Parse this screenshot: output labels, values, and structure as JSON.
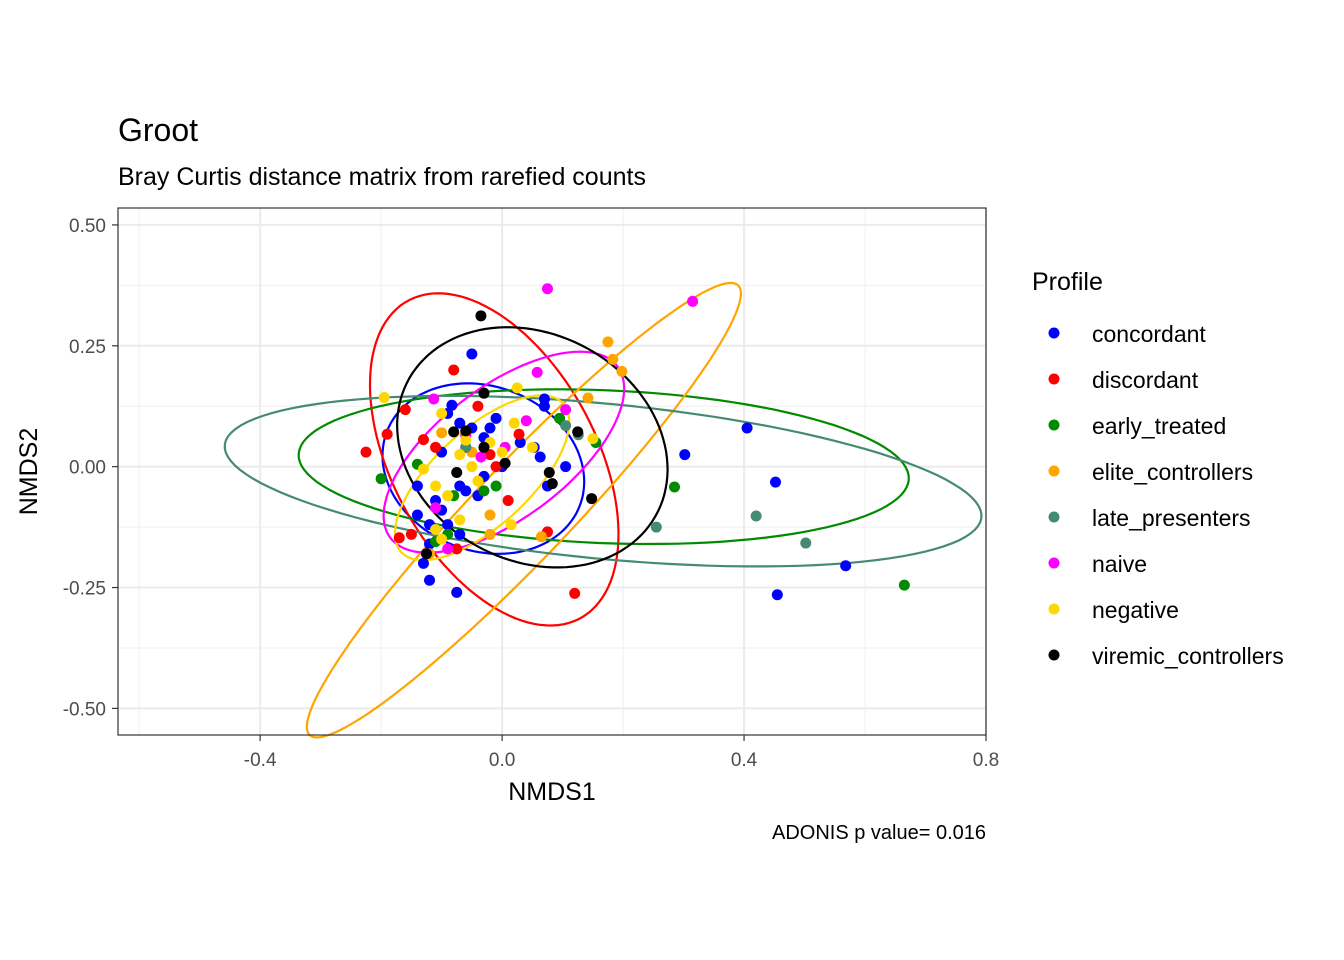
{
  "chart_data": {
    "type": "scatter",
    "title": "Groot",
    "subtitle": "Bray Curtis distance matrix from rarefied counts",
    "xlabel": "NMDS1",
    "ylabel": "NMDS2",
    "xlim": [
      -0.635,
      0.8
    ],
    "ylim": [
      -0.555,
      0.535
    ],
    "x_ticks": [
      -0.4,
      0.0,
      0.4,
      0.8
    ],
    "x_tick_labels": [
      "-0.4",
      "0.0",
      "0.4",
      "0.8"
    ],
    "y_ticks": [
      -0.5,
      -0.25,
      0.0,
      0.25,
      0.5
    ],
    "y_tick_labels": [
      "-0.50",
      "-0.25",
      "0.00",
      "0.25",
      "0.50"
    ],
    "grid": true,
    "legend": {
      "title": "Profile",
      "position": "right"
    },
    "caption": "ADONIS p value= 0.016",
    "series": [
      {
        "name": "concordant",
        "color": "#0000FF",
        "points": [
          [
            -0.05,
            0.233
          ],
          [
            -0.083,
            0.127
          ],
          [
            -0.09,
            0.11
          ],
          [
            -0.07,
            0.09
          ],
          [
            -0.05,
            0.08
          ],
          [
            -0.02,
            0.08
          ],
          [
            -0.01,
            0.1
          ],
          [
            -0.03,
            0.06
          ],
          [
            0.03,
            0.05
          ],
          [
            -0.06,
            0.04
          ],
          [
            -0.1,
            0.03
          ],
          [
            0.07,
            0.14
          ],
          [
            0.07,
            0.125
          ],
          [
            0.053,
            0.04
          ],
          [
            0.063,
            0.02
          ],
          [
            0.075,
            -0.04
          ],
          [
            0.105,
            0.0
          ],
          [
            -0.14,
            -0.04
          ],
          [
            -0.11,
            -0.07
          ],
          [
            -0.07,
            -0.04
          ],
          [
            -0.06,
            -0.05
          ],
          [
            -0.04,
            -0.06
          ],
          [
            -0.1,
            -0.09
          ],
          [
            -0.14,
            -0.1
          ],
          [
            -0.12,
            -0.12
          ],
          [
            -0.11,
            -0.13
          ],
          [
            -0.09,
            -0.12
          ],
          [
            -0.07,
            -0.14
          ],
          [
            -0.12,
            -0.16
          ],
          [
            -0.13,
            -0.2
          ],
          [
            -0.12,
            -0.235
          ],
          [
            -0.075,
            -0.26
          ],
          [
            0.0,
            0.0
          ],
          [
            -0.03,
            -0.02
          ],
          [
            0.302,
            0.025
          ],
          [
            0.405,
            0.08
          ],
          [
            0.452,
            -0.032
          ],
          [
            0.568,
            -0.205
          ],
          [
            0.455,
            -0.265
          ]
        ]
      },
      {
        "name": "discordant",
        "color": "#FF0000",
        "points": [
          [
            -0.08,
            0.2
          ],
          [
            -0.16,
            0.118
          ],
          [
            -0.19,
            0.067
          ],
          [
            -0.225,
            0.03
          ],
          [
            -0.13,
            0.056
          ],
          [
            -0.11,
            0.04
          ],
          [
            -0.04,
            0.125
          ],
          [
            -0.02,
            0.025
          ],
          [
            -0.01,
            0.0
          ],
          [
            0.01,
            -0.07
          ],
          [
            0.028,
            0.067
          ],
          [
            -0.15,
            -0.14
          ],
          [
            -0.17,
            -0.147
          ],
          [
            -0.075,
            -0.17
          ],
          [
            0.075,
            -0.135
          ],
          [
            0.12,
            -0.262
          ]
        ]
      },
      {
        "name": "early_treated",
        "color": "#008B00",
        "points": [
          [
            -0.2,
            -0.025
          ],
          [
            -0.14,
            0.005
          ],
          [
            -0.08,
            -0.06
          ],
          [
            -0.03,
            -0.05
          ],
          [
            -0.01,
            -0.04
          ],
          [
            -0.09,
            -0.14
          ],
          [
            -0.11,
            -0.155
          ],
          [
            0.095,
            0.1
          ],
          [
            0.155,
            0.05
          ],
          [
            0.285,
            -0.042
          ],
          [
            0.665,
            -0.245
          ]
        ]
      },
      {
        "name": "elite_controllers",
        "color": "#FFA500",
        "points": [
          [
            0.175,
            0.258
          ],
          [
            0.183,
            0.222
          ],
          [
            0.198,
            0.197
          ],
          [
            0.142,
            0.142
          ],
          [
            -0.02,
            -0.1
          ],
          [
            -0.02,
            -0.14
          ],
          [
            -0.05,
            0.03
          ],
          [
            -0.12,
            -0.18
          ],
          [
            0.065,
            -0.145
          ],
          [
            -0.1,
            0.07
          ]
        ]
      },
      {
        "name": "late_presenters",
        "color": "#458B74",
        "points": [
          [
            0.105,
            0.085
          ],
          [
            0.126,
            0.066
          ],
          [
            -0.06,
            0.04
          ],
          [
            0.255,
            -0.125
          ],
          [
            0.42,
            -0.102
          ],
          [
            0.502,
            -0.158
          ]
        ]
      },
      {
        "name": "naive",
        "color": "#FF00FF",
        "points": [
          [
            0.075,
            0.368
          ],
          [
            0.315,
            0.342
          ],
          [
            0.058,
            0.195
          ],
          [
            -0.113,
            0.14
          ],
          [
            0.105,
            0.118
          ],
          [
            0.04,
            0.095
          ],
          [
            -0.06,
            0.065
          ],
          [
            0.005,
            0.04
          ],
          [
            -0.035,
            0.02
          ],
          [
            -0.11,
            -0.085
          ],
          [
            -0.09,
            -0.17
          ]
        ]
      },
      {
        "name": "negative",
        "color": "#FFD700",
        "points": [
          [
            -0.195,
            0.143
          ],
          [
            0.025,
            0.163
          ],
          [
            -0.1,
            0.11
          ],
          [
            -0.13,
            -0.005
          ],
          [
            -0.11,
            -0.04
          ],
          [
            -0.06,
            0.055
          ],
          [
            -0.07,
            0.025
          ],
          [
            -0.02,
            0.05
          ],
          [
            0.0,
            0.03
          ],
          [
            0.02,
            0.09
          ],
          [
            0.05,
            0.04
          ],
          [
            0.15,
            0.058
          ],
          [
            -0.11,
            -0.13
          ],
          [
            -0.07,
            -0.11
          ],
          [
            -0.1,
            -0.15
          ],
          [
            0.015,
            -0.12
          ],
          [
            -0.04,
            -0.03
          ],
          [
            -0.09,
            -0.06
          ],
          [
            -0.05,
            0.0
          ]
        ]
      },
      {
        "name": "viremic_controllers",
        "color": "#000000",
        "points": [
          [
            -0.035,
            0.312
          ],
          [
            -0.03,
            0.152
          ],
          [
            -0.08,
            0.072
          ],
          [
            -0.06,
            0.074
          ],
          [
            -0.03,
            0.04
          ],
          [
            0.005,
            0.007
          ],
          [
            -0.075,
            -0.012
          ],
          [
            0.078,
            -0.012
          ],
          [
            0.083,
            -0.035
          ],
          [
            0.125,
            0.072
          ],
          [
            0.148,
            -0.066
          ],
          [
            -0.125,
            -0.18
          ]
        ]
      }
    ],
    "ellipses": [
      {
        "name": "concordant",
        "color": "#0000FF",
        "center": [
          -0.031,
          -0.004
        ],
        "semi_axes": [
          0.157,
          0.185
        ],
        "angle_deg": 35
      },
      {
        "name": "discordant",
        "color": "#FF0000",
        "center": [
          -0.013,
          0.015
        ],
        "semi_axes": [
          0.36,
          0.175
        ],
        "angle_deg": -70
      },
      {
        "name": "early_treated",
        "color": "#008B00",
        "center": [
          0.168,
          0.0
        ],
        "semi_axes": [
          0.505,
          0.158
        ],
        "angle_deg": -3
      },
      {
        "name": "elite_controllers",
        "color": "#FFA500",
        "center": [
          0.036,
          -0.09
        ],
        "semi_axes": [
          0.585,
          0.087
        ],
        "angle_deg": 53
      },
      {
        "name": "late_presenters",
        "color": "#458B74",
        "center": [
          0.167,
          -0.03
        ],
        "semi_axes": [
          0.63,
          0.16
        ],
        "angle_deg": -7
      },
      {
        "name": "naive",
        "color": "#FF00FF",
        "center": [
          0.003,
          0.03
        ],
        "semi_axes": [
          0.26,
          0.123
        ],
        "angle_deg": 47
      },
      {
        "name": "negative",
        "color": "#FFD700",
        "center": [
          -0.033,
          -0.023
        ],
        "semi_axes": [
          0.205,
          0.088
        ],
        "angle_deg": 52
      },
      {
        "name": "viremic_controllers",
        "color": "#000000",
        "center": [
          0.05,
          0.04
        ],
        "semi_axes": [
          0.26,
          0.21
        ],
        "angle_deg": -60
      }
    ]
  }
}
